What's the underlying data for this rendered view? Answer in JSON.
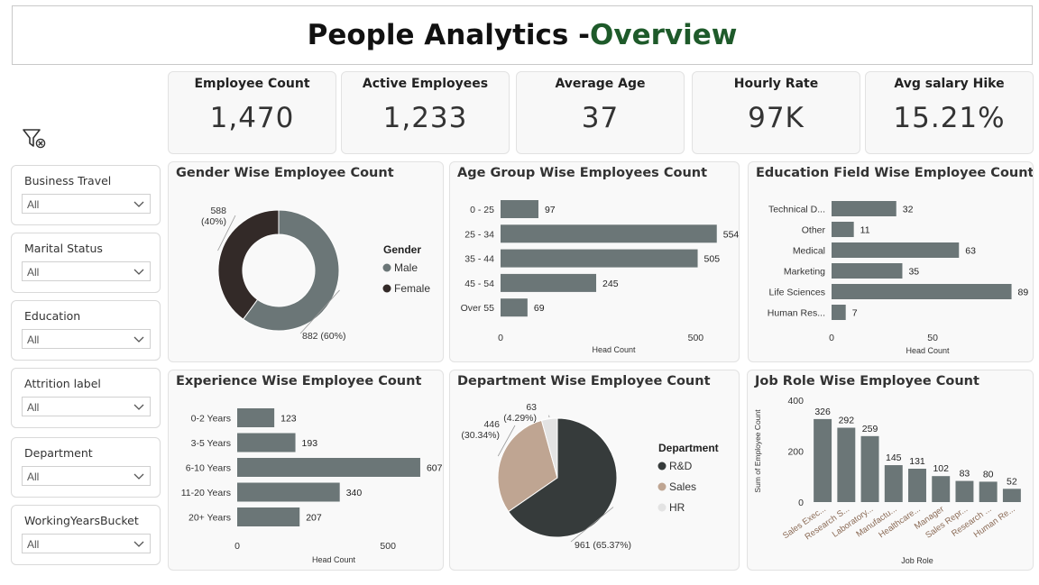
{
  "title": {
    "main": "People Analytics - ",
    "accent": "Overview"
  },
  "kpis": [
    {
      "label": "Employee Count",
      "value": "1,470"
    },
    {
      "label": "Active Employees",
      "value": "1,233"
    },
    {
      "label": "Average Age",
      "value": "37"
    },
    {
      "label": "Hourly Rate",
      "value": "97K"
    },
    {
      "label": "Avg salary Hike",
      "value": "15.21%"
    }
  ],
  "filters": [
    {
      "label": "Business Travel",
      "value": "All"
    },
    {
      "label": "Marital Status",
      "value": "All"
    },
    {
      "label": "Education",
      "value": "All"
    },
    {
      "label": "Attrition label",
      "value": "All"
    },
    {
      "label": "Department",
      "value": "All"
    },
    {
      "label": "WorkingYearsBucket",
      "value": "All"
    }
  ],
  "icons": {
    "clear_filters": "filter-clear-icon",
    "dropdown": "chevron-down-icon"
  },
  "colors": {
    "bar": "#6b7677",
    "male": "#6b7677",
    "female": "#332a28",
    "rnd": "#363b3b",
    "sales": "#bfa592",
    "hr": "#e3e3e3",
    "accent": "#1e5a2a"
  },
  "chart_data": [
    {
      "type": "pie",
      "title": "Gender Wise Employee Count",
      "donut": true,
      "legend_title": "Gender",
      "legend_position": "right",
      "slices": [
        {
          "name": "Male",
          "value": 882,
          "label": "882 (60%)"
        },
        {
          "name": "Female",
          "value": 588,
          "label": "588\n(40%)"
        }
      ]
    },
    {
      "type": "bar",
      "orientation": "horizontal",
      "title": "Age Group Wise Employees Count",
      "categories": [
        "0 - 25",
        "25 - 34",
        "35 - 44",
        "45 - 54",
        "Over 55"
      ],
      "values": [
        97,
        554,
        505,
        245,
        69
      ],
      "xlabel": "Head Count",
      "xlim": [
        0,
        580
      ],
      "ticks": [
        "0",
        "500"
      ],
      "tick_values": [
        0,
        500
      ]
    },
    {
      "type": "bar",
      "orientation": "horizontal",
      "title": "Education Field Wise Employee Count",
      "categories": [
        "Technical D...",
        "Other",
        "Medical",
        "Marketing",
        "Life Sciences",
        "Human Res..."
      ],
      "values": [
        32,
        11,
        63,
        35,
        89,
        7
      ],
      "xlabel": "Head Count",
      "xlim": [
        0,
        95
      ],
      "ticks": [
        "0",
        "50"
      ],
      "tick_values": [
        0,
        50
      ]
    },
    {
      "type": "bar",
      "orientation": "horizontal",
      "title": "Experience Wise Employee Count",
      "categories": [
        "0-2 Years",
        "3-5 Years",
        "6-10 Years",
        "11-20 Years",
        "20+ Years"
      ],
      "values": [
        123,
        193,
        607,
        340,
        207
      ],
      "xlabel": "Head Count",
      "xlim": [
        0,
        640
      ],
      "ticks": [
        "0",
        "500"
      ],
      "tick_values": [
        0,
        500
      ]
    },
    {
      "type": "pie",
      "title": "Department Wise Employee Count",
      "donut": false,
      "legend_title": "Department",
      "legend_position": "right",
      "slices": [
        {
          "name": "R&D",
          "value": 961,
          "label": "961 (65.37%)"
        },
        {
          "name": "Sales",
          "value": 446,
          "label": "446\n(30.34%)"
        },
        {
          "name": "HR",
          "value": 63,
          "label": "63\n(4.29%)"
        }
      ]
    },
    {
      "type": "bar",
      "orientation": "vertical",
      "title": "Job Role Wise Employee Count",
      "categories": [
        "Sales Exec...",
        "Research S...",
        "Laboratory...",
        "Manufactu...",
        "Healthcare...",
        "Manager",
        "Sales Repr...",
        "Research ...",
        "Human Re..."
      ],
      "values": [
        326,
        292,
        259,
        145,
        131,
        102,
        83,
        80,
        52
      ],
      "xlabel": "Job Role",
      "ylabel": "Sum of Employee Count",
      "ylim": [
        0,
        400
      ],
      "ticks": [
        "0",
        "200",
        "400"
      ],
      "tick_values": [
        0,
        200,
        400
      ]
    }
  ]
}
